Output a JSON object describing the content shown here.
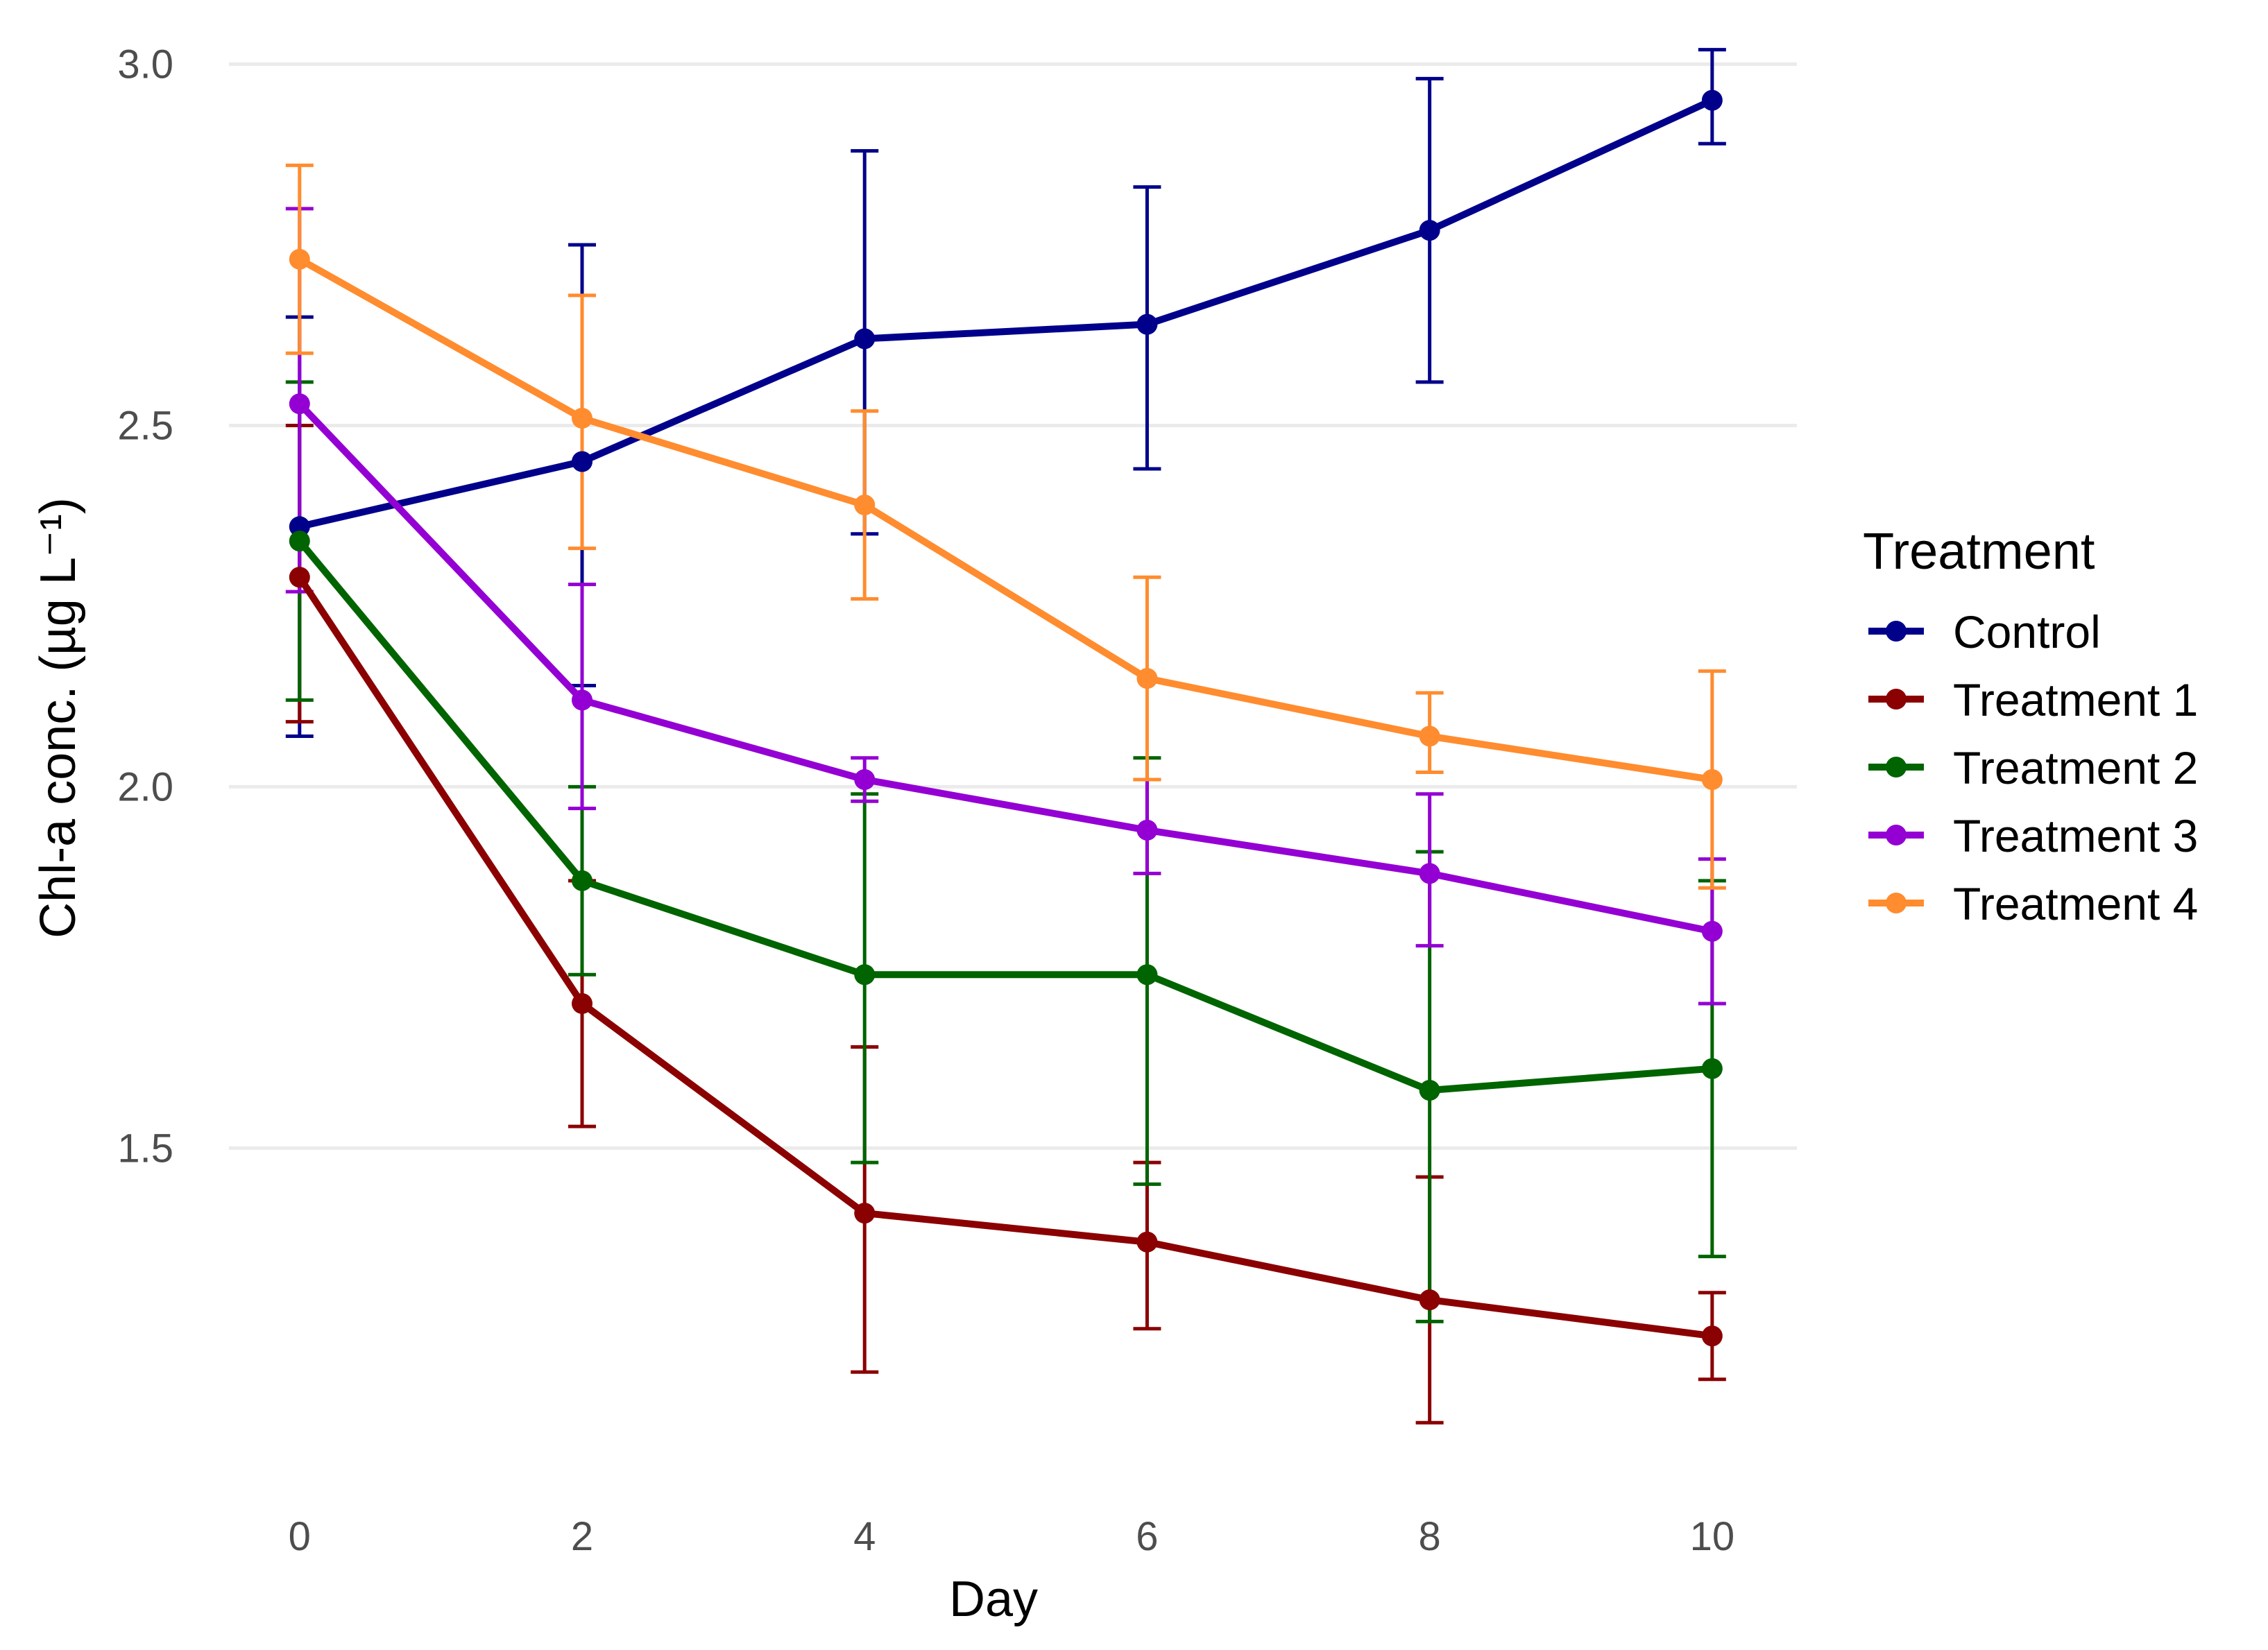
{
  "chart_data": {
    "type": "line",
    "title": "",
    "xlabel": "Day",
    "ylabel": "Chl-a conc. (µg L⁻¹)",
    "x": [
      0,
      2,
      4,
      6,
      8,
      10
    ],
    "x_tick_labels": [
      "0",
      "2",
      "4",
      "6",
      "8",
      "10"
    ],
    "y_ticks": [
      1.5,
      2.0,
      2.5,
      3.0
    ],
    "y_tick_labels": [
      "1.5",
      "2.0",
      "2.5",
      "3.0"
    ],
    "xlim": [
      -0.5,
      10.6
    ],
    "ylim": [
      1.03,
      3.06
    ],
    "grid": true,
    "legend": {
      "title": "Treatment",
      "position": "right"
    },
    "error_bars": true,
    "series": [
      {
        "name": "Control",
        "color": "#00008B",
        "values": [
          2.36,
          2.45,
          2.62,
          2.64,
          2.77,
          2.95
        ],
        "lower": [
          2.07,
          2.14,
          2.35,
          2.44,
          2.56,
          2.89
        ],
        "upper": [
          2.65,
          2.75,
          2.88,
          2.83,
          2.98,
          3.02
        ]
      },
      {
        "name": "Treatment 1",
        "color": "#8B0000",
        "values": [
          2.29,
          1.7,
          1.41,
          1.37,
          1.29,
          1.24
        ],
        "lower": [
          2.09,
          1.53,
          1.19,
          1.25,
          1.12,
          1.18
        ],
        "upper": [
          2.5,
          1.87,
          1.64,
          1.48,
          1.46,
          1.3
        ]
      },
      {
        "name": "Treatment 2",
        "color": "#006400",
        "values": [
          2.34,
          1.87,
          1.74,
          1.74,
          1.58,
          1.61
        ],
        "lower": [
          2.12,
          1.74,
          1.48,
          1.45,
          1.26,
          1.35
        ],
        "upper": [
          2.56,
          2.0,
          1.99,
          2.04,
          1.91,
          1.87
        ]
      },
      {
        "name": "Treatment 3",
        "color": "#9400D3",
        "values": [
          2.53,
          2.12,
          2.01,
          1.94,
          1.88,
          1.8
        ],
        "lower": [
          2.27,
          1.97,
          1.98,
          1.88,
          1.78,
          1.7
        ],
        "upper": [
          2.8,
          2.28,
          2.04,
          2.01,
          1.99,
          1.9
        ]
      },
      {
        "name": "Treatment 4",
        "color": "#FF8C2F",
        "values": [
          2.73,
          2.51,
          2.39,
          2.15,
          2.07,
          2.01
        ],
        "lower": [
          2.6,
          2.33,
          2.26,
          2.01,
          2.02,
          1.86
        ],
        "upper": [
          2.86,
          2.68,
          2.52,
          2.29,
          2.13,
          2.16
        ]
      }
    ]
  }
}
